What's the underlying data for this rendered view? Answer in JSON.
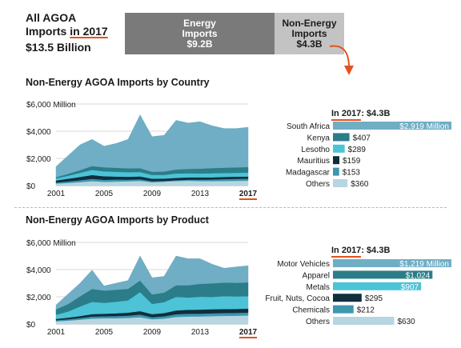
{
  "header": {
    "title_line1": "All AGOA",
    "title_line2_prefix": "Imports ",
    "title_year": "in 2017",
    "total": "$13.5 Billion",
    "energy_label_1": "Energy",
    "energy_label_2": "Imports",
    "energy_value": "$9.2B",
    "nonenergy_label_1": "Non-Energy",
    "nonenergy_label_2": "Imports",
    "nonenergy_value": "$4.3B"
  },
  "colors": {
    "accent": "#e0531f",
    "energy": "#7a7a7a",
    "nonenergy": "#c3c3c3",
    "layer_top": "#6faec4",
    "layer_2": "#2b7d89",
    "layer_3": "#4cc3d7",
    "layer_4": "#102e3c",
    "layer_5": "#3d97af",
    "layer_6": "#b7d6e1"
  },
  "sections": [
    {
      "title": "Non-Energy AGOA Imports by Country",
      "in2017_prefix": "In 2017",
      "in2017_value": ": $4.3B"
    },
    {
      "title": "Non-Energy AGOA Imports by Product",
      "in2017_prefix": "In 2017",
      "in2017_value": ": $4.3B"
    }
  ],
  "chart_data": [
    {
      "type": "area",
      "stacked": true,
      "ylabel": "$6,000 Million",
      "ylim": [
        0,
        6000
      ],
      "yticks": [
        "$0",
        "$2,000",
        "$4,000",
        "$6,000 Million"
      ],
      "ytick_values": [
        0,
        2000,
        4000,
        6000
      ],
      "xtick_labels": [
        "2001",
        "2005",
        "2009",
        "2013",
        "2017"
      ],
      "xtick_values": [
        2001,
        2005,
        2009,
        2013,
        2017
      ],
      "x": [
        2001,
        2002,
        2003,
        2004,
        2005,
        2006,
        2007,
        2008,
        2009,
        2010,
        2011,
        2012,
        2013,
        2014,
        2015,
        2016,
        2017
      ],
      "series": [
        {
          "name": "Others",
          "values": [
            150,
            200,
            260,
            330,
            280,
            300,
            320,
            350,
            250,
            290,
            340,
            360,
            340,
            330,
            340,
            350,
            360
          ]
        },
        {
          "name": "Madagascar",
          "values": [
            80,
            110,
            140,
            170,
            150,
            150,
            120,
            120,
            80,
            60,
            60,
            80,
            100,
            120,
            140,
            150,
            153
          ]
        },
        {
          "name": "Mauritius",
          "values": [
            150,
            200,
            240,
            280,
            260,
            220,
            210,
            210,
            180,
            170,
            170,
            170,
            170,
            160,
            160,
            160,
            159
          ]
        },
        {
          "name": "Lesotho",
          "values": [
            150,
            220,
            300,
            380,
            360,
            350,
            340,
            320,
            280,
            270,
            320,
            300,
            290,
            300,
            290,
            280,
            289
          ]
        },
        {
          "name": "Kenya",
          "values": [
            90,
            140,
            200,
            280,
            300,
            290,
            280,
            280,
            230,
            250,
            300,
            320,
            350,
            380,
            390,
            400,
            407
          ]
        },
        {
          "name": "South Africa",
          "values": [
            780,
            1330,
            1860,
            1960,
            1550,
            1790,
            2130,
            3920,
            2580,
            2660,
            3610,
            3370,
            3450,
            3110,
            2880,
            2860,
            2919
          ]
        }
      ],
      "panel": {
        "title": "In 2017: $4.3B",
        "items": [
          {
            "label": "South Africa",
            "value": 2919,
            "value_label": "$2,919 Million"
          },
          {
            "label": "Kenya",
            "value": 407,
            "value_label": "$407"
          },
          {
            "label": "Lesotho",
            "value": 289,
            "value_label": "$289"
          },
          {
            "label": "Mauritius",
            "value": 159,
            "value_label": "$159"
          },
          {
            "label": "Madagascar",
            "value": 153,
            "value_label": "$153"
          },
          {
            "label": "Others",
            "value": 360,
            "value_label": "$360"
          }
        ]
      }
    },
    {
      "type": "area",
      "stacked": true,
      "ylabel": "$6,000 Million",
      "ylim": [
        0,
        6000
      ],
      "yticks": [
        "$0",
        "$2,000",
        "$4,000",
        "$6,000 Million"
      ],
      "ytick_values": [
        0,
        2000,
        4000,
        6000
      ],
      "xtick_labels": [
        "2001",
        "2005",
        "2009",
        "2013",
        "2017"
      ],
      "xtick_values": [
        2001,
        2005,
        2009,
        2013,
        2017
      ],
      "x": [
        2001,
        2002,
        2003,
        2004,
        2005,
        2006,
        2007,
        2008,
        2009,
        2010,
        2011,
        2012,
        2013,
        2014,
        2015,
        2016,
        2017
      ],
      "series": [
        {
          "name": "Others",
          "values": [
            200,
            250,
            320,
            400,
            420,
            430,
            450,
            500,
            350,
            400,
            520,
            550,
            560,
            580,
            600,
            610,
            630
          ]
        },
        {
          "name": "Chemicals",
          "values": [
            80,
            100,
            120,
            150,
            150,
            160,
            170,
            200,
            150,
            170,
            200,
            210,
            200,
            210,
            210,
            210,
            212
          ]
        },
        {
          "name": "Fruit, Nuts, Cocoa",
          "values": [
            100,
            120,
            150,
            180,
            190,
            200,
            220,
            250,
            230,
            240,
            280,
            290,
            300,
            300,
            290,
            290,
            295
          ]
        },
        {
          "name": "Metals",
          "values": [
            300,
            450,
            700,
            900,
            800,
            850,
            900,
            1400,
            750,
            800,
            1000,
            900,
            950,
            900,
            950,
            920,
            907
          ]
        },
        {
          "name": "Apparel",
          "values": [
            400,
            550,
            750,
            950,
            900,
            880,
            850,
            850,
            700,
            700,
            850,
            900,
            950,
            1000,
            1000,
            1000,
            1024
          ]
        },
        {
          "name": "Motor Vehicles",
          "values": [
            320,
            730,
            960,
            1380,
            340,
            480,
            610,
            1800,
            1220,
            1190,
            2150,
            1950,
            1840,
            1410,
            1050,
            1170,
            1219
          ]
        }
      ],
      "panel": {
        "title": "In 2017: $4.3B",
        "items": [
          {
            "label": "Motor Vehicles",
            "value": 1219,
            "value_label": "$1,219 Million"
          },
          {
            "label": "Apparel",
            "value": 1024,
            "value_label": "$1,024"
          },
          {
            "label": "Metals",
            "value": 907,
            "value_label": "$907"
          },
          {
            "label": "Fruit, Nuts, Cocoa",
            "value": 295,
            "value_label": "$295"
          },
          {
            "label": "Chemicals",
            "value": 212,
            "value_label": "$212"
          },
          {
            "label": "Others",
            "value": 630,
            "value_label": "$630"
          }
        ]
      }
    }
  ]
}
